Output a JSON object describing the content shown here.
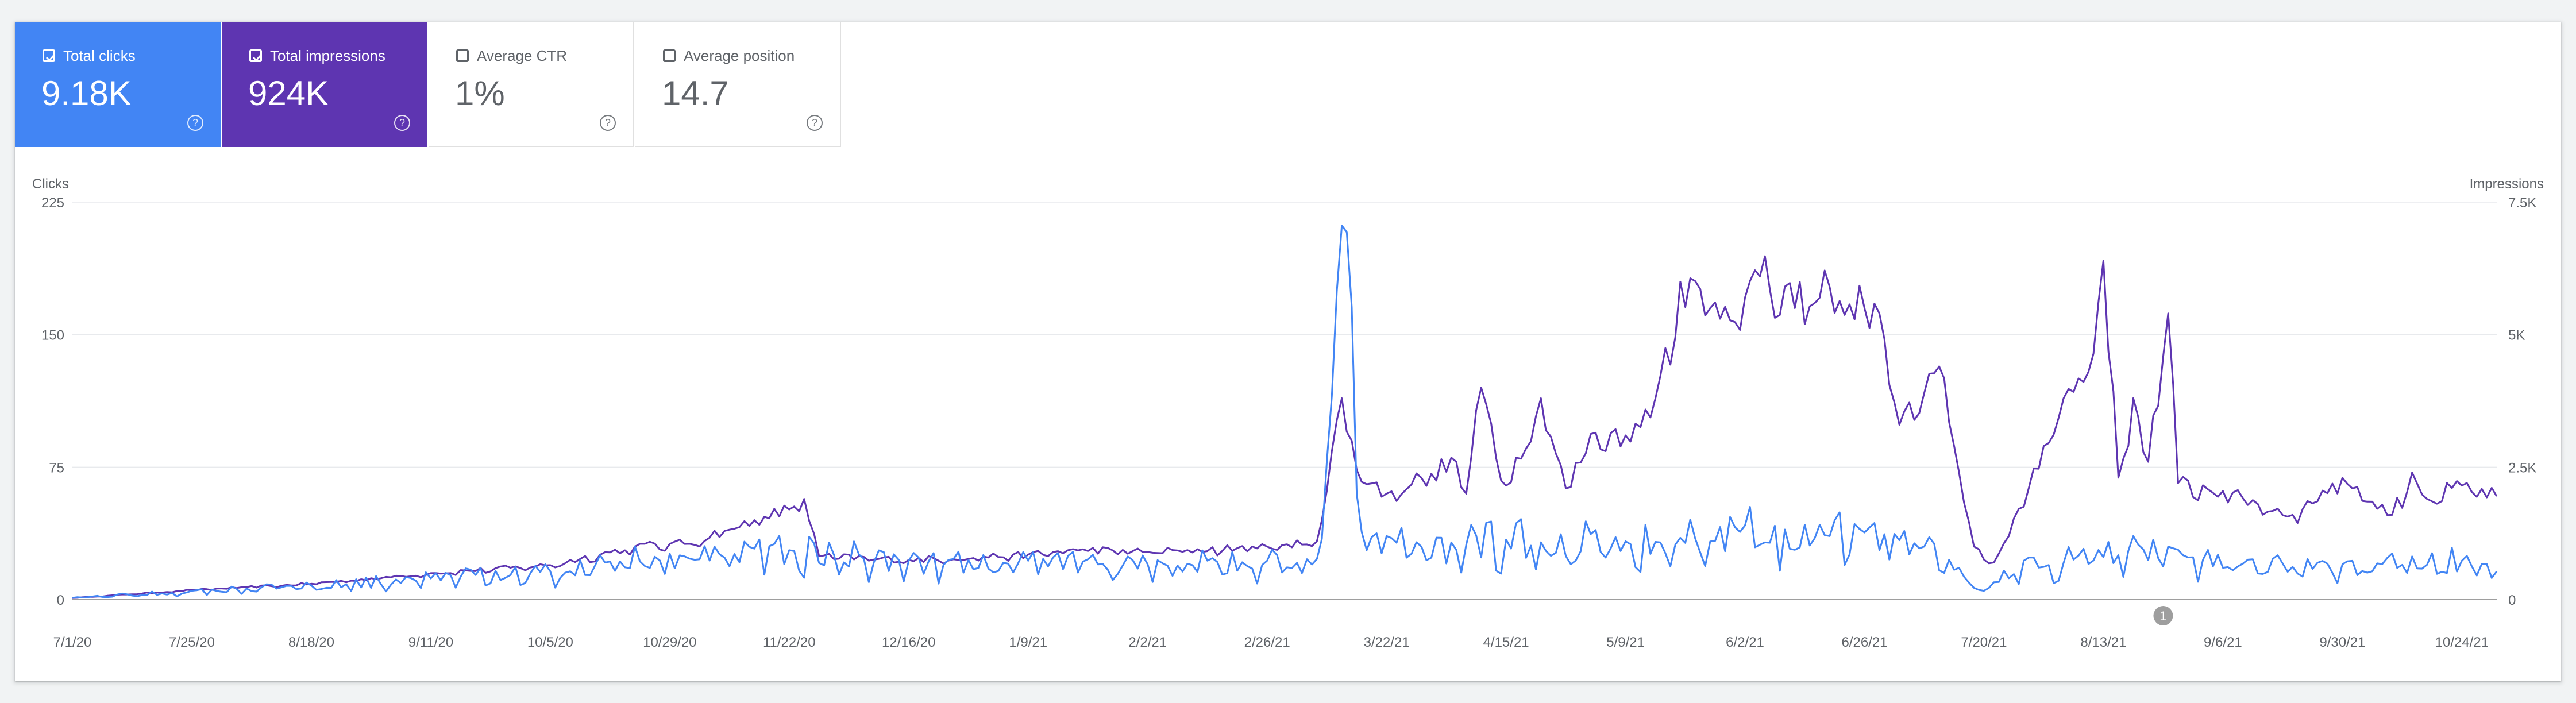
{
  "metrics": [
    {
      "label": "Total clicks",
      "value": "9.18K",
      "checked": true,
      "color": "#4285f4"
    },
    {
      "label": "Total impressions",
      "value": "924K",
      "checked": true,
      "color": "#5e35b1"
    },
    {
      "label": "Average CTR",
      "value": "1%",
      "checked": false,
      "color": "#ffffff"
    },
    {
      "label": "Average position",
      "value": "14.7",
      "checked": false,
      "color": "#ffffff"
    }
  ],
  "help_glyph": "?",
  "chart_data": {
    "type": "line",
    "ylabel_left": "Clicks",
    "ylabel_right": "Impressions",
    "y_left_ticks": [
      "0",
      "75",
      "150",
      "225"
    ],
    "y_left_range": [
      0,
      225
    ],
    "y_right_ticks": [
      "0",
      "2.5K",
      "5K",
      "7.5K"
    ],
    "y_right_range": [
      0,
      7500
    ],
    "x_tick_labels": [
      "7/1/20",
      "7/25/20",
      "8/18/20",
      "9/11/20",
      "10/5/20",
      "10/29/20",
      "11/22/20",
      "12/16/20",
      "1/9/21",
      "2/2/21",
      "2/26/21",
      "3/22/21",
      "4/15/21",
      "5/9/21",
      "6/2/21",
      "6/26/21",
      "7/20/21",
      "8/13/21",
      "9/6/21",
      "9/30/21",
      "10/24/21"
    ],
    "x_start": "7/1/20",
    "x_end": "10/31/21",
    "grid": true,
    "annotation": {
      "label": "1",
      "date": "8/25/21"
    },
    "series": [
      {
        "name": "Impressions",
        "axis": "right",
        "color": "#5e35b1",
        "points": [
          [
            "7/1/20",
            30
          ],
          [
            "7/25/20",
            180
          ],
          [
            "8/18/20",
            300
          ],
          [
            "9/11/20",
            500
          ],
          [
            "10/5/20",
            650
          ],
          [
            "10/22/20",
            1000
          ],
          [
            "10/29/20",
            1050
          ],
          [
            "11/1/20",
            1050
          ],
          [
            "11/15/20",
            1500
          ],
          [
            "11/22/20",
            1700
          ],
          [
            "11/25/20",
            1900
          ],
          [
            "11/28/20",
            820
          ],
          [
            "12/16/20",
            750
          ],
          [
            "1/9/21",
            850
          ],
          [
            "1/20/21",
            950
          ],
          [
            "2/2/21",
            900
          ],
          [
            "2/26/21",
            1000
          ],
          [
            "3/8/21",
            1100
          ],
          [
            "3/13/21",
            3800
          ],
          [
            "3/16/21",
            2450
          ],
          [
            "3/22/21",
            2000
          ],
          [
            "3/29/21",
            2300
          ],
          [
            "4/5/21",
            2600
          ],
          [
            "4/7/21",
            2000
          ],
          [
            "4/10/21",
            4000
          ],
          [
            "4/15/21",
            2150
          ],
          [
            "4/22/21",
            3800
          ],
          [
            "4/27/21",
            2100
          ],
          [
            "5/3/21",
            3150
          ],
          [
            "5/9/21",
            3100
          ],
          [
            "5/15/21",
            3800
          ],
          [
            "5/20/21",
            6000
          ],
          [
            "5/26/21",
            5500
          ],
          [
            "6/2/21",
            5700
          ],
          [
            "6/5/21",
            6100
          ],
          [
            "6/12/21",
            5500
          ],
          [
            "6/19/21",
            5900
          ],
          [
            "6/26/21",
            5500
          ],
          [
            "6/29/21",
            5400
          ],
          [
            "7/3/21",
            3300
          ],
          [
            "7/8/21",
            3900
          ],
          [
            "7/11/21",
            4400
          ],
          [
            "7/15/21",
            2400
          ],
          [
            "7/18/21",
            1000
          ],
          [
            "7/22/21",
            700
          ],
          [
            "7/25/21",
            1200
          ],
          [
            "8/1/21",
            2900
          ],
          [
            "8/5/21",
            3800
          ],
          [
            "8/10/21",
            4300
          ],
          [
            "8/13/21",
            6400
          ],
          [
            "8/16/21",
            2300
          ],
          [
            "8/19/21",
            3800
          ],
          [
            "8/22/21",
            2600
          ],
          [
            "8/26/21",
            5400
          ],
          [
            "8/28/21",
            2200
          ],
          [
            "9/6/21",
            2050
          ],
          [
            "9/20/21",
            1600
          ],
          [
            "9/30/21",
            2300
          ],
          [
            "10/10/21",
            1600
          ],
          [
            "10/14/21",
            2400
          ],
          [
            "10/17/21",
            1900
          ],
          [
            "10/24/21",
            2150
          ],
          [
            "10/31/21",
            1950
          ]
        ]
      },
      {
        "name": "Clicks",
        "axis": "left",
        "color": "#4285f4",
        "points": [
          [
            "7/1/20",
            1
          ],
          [
            "7/25/20",
            5
          ],
          [
            "8/18/20",
            8
          ],
          [
            "9/11/20",
            12
          ],
          [
            "10/5/20",
            16
          ],
          [
            "10/29/20",
            26
          ],
          [
            "11/22/20",
            28
          ],
          [
            "12/16/20",
            22
          ],
          [
            "1/9/21",
            22
          ],
          [
            "2/2/21",
            20
          ],
          [
            "2/26/21",
            22
          ],
          [
            "3/8/21",
            23
          ],
          [
            "3/14/21",
            208
          ],
          [
            "3/16/21",
            60
          ],
          [
            "3/18/21",
            28
          ],
          [
            "3/22/21",
            36
          ],
          [
            "3/29/21",
            30
          ],
          [
            "4/15/21",
            34
          ],
          [
            "5/9/21",
            33
          ],
          [
            "5/20/21",
            35
          ],
          [
            "6/2/21",
            42
          ],
          [
            "6/26/21",
            38
          ],
          [
            "7/8/21",
            30
          ],
          [
            "7/15/21",
            18
          ],
          [
            "7/20/21",
            5
          ],
          [
            "7/28/21",
            22
          ],
          [
            "8/13/21",
            24
          ],
          [
            "8/26/21",
            30
          ],
          [
            "9/6/21",
            18
          ],
          [
            "9/30/21",
            20
          ],
          [
            "10/24/21",
            22
          ],
          [
            "10/31/21",
            16
          ]
        ]
      }
    ]
  }
}
